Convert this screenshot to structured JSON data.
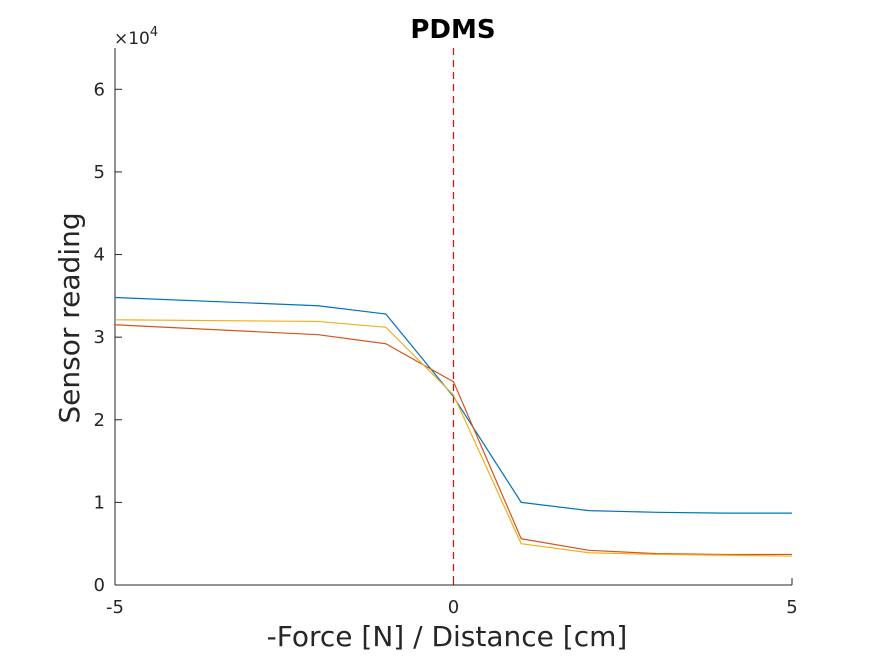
{
  "chart_data": {
    "type": "line",
    "title": "PDMS",
    "xlabel": "-Force [N] / Distance [cm]",
    "ylabel": "Sensor reading",
    "y_multiplier": {
      "base": "×10",
      "exponent": "4"
    },
    "xlim": [
      -5,
      5
    ],
    "ylim": [
      0,
      6.5
    ],
    "y_scale_factor": 10000,
    "xticks": [
      -5,
      0,
      5
    ],
    "xtick_labels": [
      "-5",
      "0",
      "5"
    ],
    "yticks": [
      0,
      1,
      2,
      3,
      4,
      5,
      6
    ],
    "ytick_labels": [
      "0",
      "1",
      "2",
      "3",
      "4",
      "5",
      "6"
    ],
    "grid": false,
    "x": [
      -5,
      -2,
      -1,
      0,
      1,
      2,
      3,
      4,
      5
    ],
    "series": [
      {
        "color": "#0072BD",
        "values": [
          3.48,
          3.38,
          3.28,
          2.28,
          1.0,
          0.9,
          0.88,
          0.87,
          0.87
        ]
      },
      {
        "color": "#D95319",
        "values": [
          3.15,
          3.03,
          2.92,
          2.46,
          0.56,
          0.42,
          0.38,
          0.37,
          0.37
        ]
      },
      {
        "color": "#EDB120",
        "values": [
          3.21,
          3.19,
          3.12,
          2.3,
          0.5,
          0.39,
          0.37,
          0.36,
          0.35
        ]
      }
    ],
    "reference_line": {
      "x": 0,
      "color": "#FF0000",
      "style": "dashed"
    }
  }
}
